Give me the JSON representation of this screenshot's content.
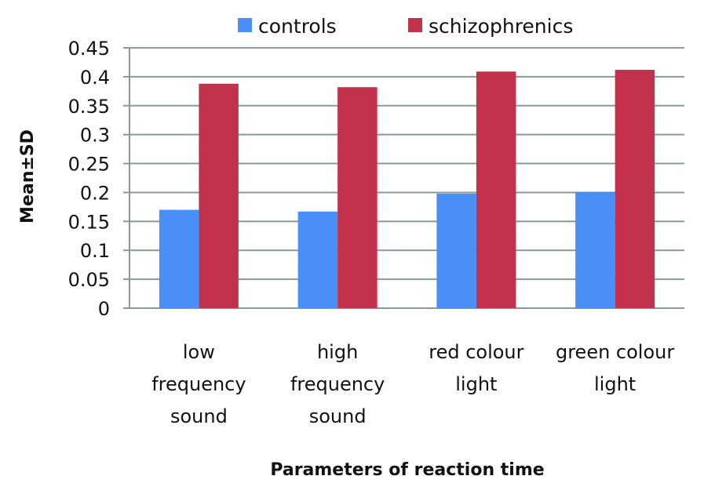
{
  "chart_data": {
    "type": "bar",
    "title": "",
    "xlabel": "Parameters of reaction time",
    "ylabel": "Mean±SD",
    "categories": [
      [
        "low",
        "frequency",
        "sound"
      ],
      [
        "high",
        "frequency",
        "sound"
      ],
      [
        "red colour",
        "light"
      ],
      [
        "green colour",
        "light"
      ]
    ],
    "series": [
      {
        "name": "controls",
        "color": "#4a8ff5",
        "values": [
          0.17,
          0.167,
          0.198,
          0.201
        ]
      },
      {
        "name": "schizophrenics",
        "color": "#c3314c",
        "values": [
          0.388,
          0.382,
          0.409,
          0.412
        ]
      }
    ],
    "ylim": [
      0,
      0.45
    ],
    "yticks": [
      "0",
      "0.05",
      "0.1",
      "0.15",
      "0.2",
      "0.25",
      "0.3",
      "0.35",
      "0.4",
      "0.45"
    ],
    "ytick_values": [
      0,
      0.05,
      0.1,
      0.15,
      0.2,
      0.25,
      0.3,
      0.35,
      0.4,
      0.45
    ],
    "grid": true,
    "legend_position": "top-center",
    "gridline_color": "#889999"
  }
}
